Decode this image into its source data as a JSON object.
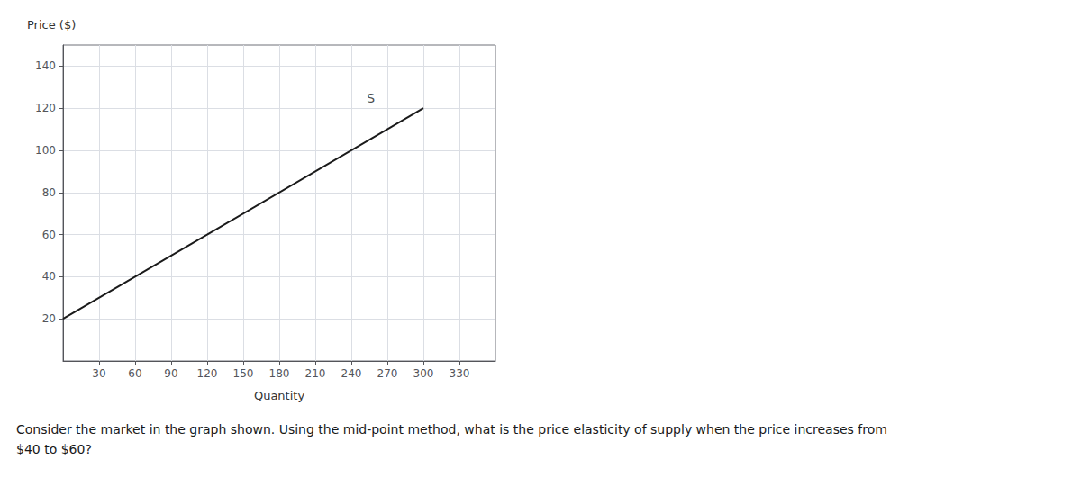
{
  "chart_data": {
    "type": "line",
    "xlabel": "Quantity",
    "ylabel": "Price ($)",
    "x": [
      0,
      300
    ],
    "values": [
      20,
      120
    ],
    "color": "#1a1a1a",
    "xlim": [
      0,
      360
    ],
    "ylim": [
      0,
      150
    ],
    "xticks": [
      30,
      60,
      90,
      120,
      150,
      180,
      210,
      240,
      270,
      300,
      330
    ],
    "yticks": [
      20,
      40,
      60,
      80,
      100,
      120,
      140
    ],
    "grid": true,
    "annotations": [
      {
        "text": "S",
        "x": 253,
        "y": 121
      }
    ],
    "caption": [
      "Consider the market in the graph shown. Using the mid-point method, what is the price elasticity of supply when the price increases from",
      "$40 to $60?"
    ]
  }
}
